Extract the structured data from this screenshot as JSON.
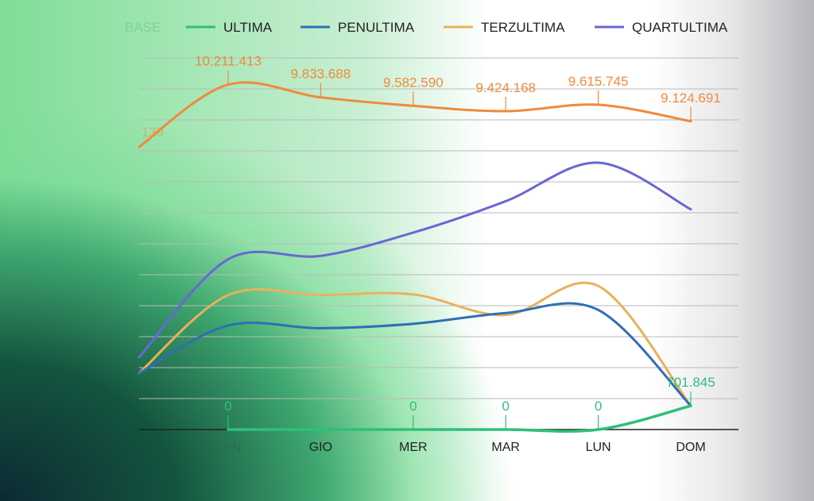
{
  "chart_data": {
    "type": "line",
    "categories": [
      "VEN",
      "GIO",
      "MER",
      "MAR",
      "LUN",
      "DOM"
    ],
    "legend_position": "top",
    "grid": true,
    "ylim": [
      0,
      11000000
    ],
    "series": [
      {
        "name": "BASE",
        "color": "#f08a3c",
        "values": [
          10211413,
          9833688,
          9582590,
          9424168,
          9615745,
          9124691
        ],
        "labels": [
          "10.211.413",
          "9.833.688",
          "9.582.590",
          "9.424.168",
          "9.615.745",
          "9.124.691"
        ],
        "partial_left_label": "139"
      },
      {
        "name": "ULTIMA",
        "color": "#2fbf7c",
        "values": [
          0,
          0,
          0,
          0,
          0,
          701845
        ],
        "labels": [
          "0",
          "0",
          "0",
          "0",
          "0",
          "701.845"
        ]
      },
      {
        "name": "PENULTIMA",
        "color": "#2f6fb3",
        "values": [
          3080000,
          3000000,
          3130000,
          3450000,
          3540000,
          701845
        ]
      },
      {
        "name": "TERZULTIMA",
        "color": "#e8b25a",
        "values": [
          3980000,
          3980000,
          4000000,
          3390000,
          4250000,
          701845
        ]
      },
      {
        "name": "QUARTULTIMA",
        "color": "#6a67d4",
        "values": [
          5040000,
          5140000,
          5830000,
          6760000,
          7900000,
          6520000
        ]
      }
    ]
  }
}
